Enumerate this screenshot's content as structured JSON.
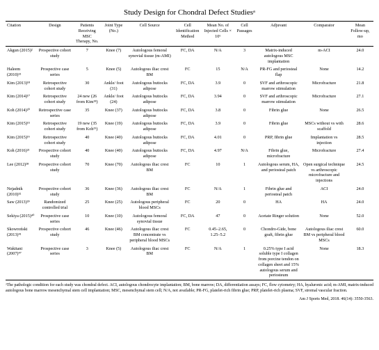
{
  "title": "Study Design for Chondral Defect Studiesᵃ",
  "columns": [
    "Citation",
    "Design",
    "Patients Receiving MSC Therapy, No.",
    "Joint Type (No.)",
    "Cell Source",
    "Cell Identification Method",
    "Mean No. of Injected Cells × 10⁶",
    "Cell Passages",
    "Adjuvant",
    "Comparator",
    "Mean Follow-up, mo"
  ],
  "rows": [
    [
      "Akgun (2015)²",
      "Prospective cohort study",
      "7",
      "Knee (7)",
      "Autologous femoral synovial tissue (m-AMI)",
      "FC, DA",
      "N/A",
      "3",
      "Matrix-induced autologous MSC implantation",
      "m-ACI",
      "24.0"
    ],
    [
      "Haleem (2010)¹³",
      "Prospective case series",
      "5",
      "Knee (5)",
      "Autologous iliac crest BM",
      "FC",
      "15",
      "N/A",
      "PR-FG and periosteal flap",
      "None",
      "14.2"
    ],
    [
      "Kim (2013)¹⁸",
      "Retrospective cohort study",
      "30",
      "Ankle/ foot (31)",
      "Autologous buttocks adipose",
      "FC, DA",
      "3.9",
      "0",
      "SVF and arthroscopic marrow stimulation",
      "Microfracture",
      "21.8"
    ],
    [
      "Kim (2014)¹⁷",
      "Retrospective cohort study",
      "24 new (26 from Kim¹⁸)",
      "Ankle/ foot (24)",
      "Autologous buttocks adipose",
      "FC, DA",
      "3.94",
      "0",
      "SVF and arthroscopic marrow stimulation",
      "Microfracture",
      "27.1"
    ],
    [
      "Koh (2014)²⁰",
      "Retrospective case series",
      "35",
      "Knee (37)",
      "Autologous buttocks adipose",
      "FC, DA",
      "3.8",
      "0",
      "Fibrin glue",
      "None",
      "26.5"
    ],
    [
      "Kim (2015)¹⁵",
      "Retrospective cohort study",
      "19 new (35 from Koh¹⁹)",
      "Knee (19)",
      "Autologous buttocks adipose",
      "FC, DA",
      "3.9",
      "0",
      "Fibrin glue",
      "MSCs without vs with scaffold",
      "28.6"
    ],
    [
      "Kim (2015)¹⁶",
      "Retrospective cohort study",
      "40",
      "Knee (40)",
      "Autologous buttocks adipose",
      "FC, DA",
      "4.01",
      "0",
      "PRP, fibrin glue",
      "Implantation vs injection",
      "28.5"
    ],
    [
      "Koh (2016)²¹",
      "Prospective cohort study",
      "40",
      "Knee (40)",
      "Autologous buttocks adipose",
      "FC, DA",
      "4.97",
      "N/A",
      "Fibrin glue, microfracture",
      "Microfracture",
      "27.4"
    ],
    [
      "Lee (2012)²⁸",
      "Prospective cohort study",
      "70",
      "Knee (70)",
      "Autologous iliac crest BM",
      "FC",
      "10",
      "1",
      "Autologous serum, HA, and periosteal patch",
      "Open surgical technique vs arthroscopic microfracture and injections",
      "24.5"
    ],
    [
      "Nejadnik (2010)³²",
      "Prospective cohort study",
      "36",
      "Knee (36)",
      "Autologous iliac crest BM",
      "FC",
      "N/A",
      "1",
      "Fibrin glue and periosteal patch",
      "ACI",
      "24.0"
    ],
    [
      "Saw (2013)³⁹",
      "Randomized controlled trial",
      "25",
      "Knee (25)",
      "Autologous peripheral blood MSCs",
      "FC",
      "20",
      "0",
      "HA",
      "HA",
      "24.0"
    ],
    [
      "Sekiya (2015)⁴⁰",
      "Prospective case series",
      "10",
      "Knee (10)",
      "Autologous femoral synovial tissue",
      "FC, DA",
      "47",
      "0",
      "Acetate Ringer solution",
      "None",
      "52.0"
    ],
    [
      "Skowroński (2013)⁴¹",
      "Prospective cohort study",
      "46",
      "Knee (46)",
      "Autologous iliac crest BM concentrate vs peripheral blood MSCs",
      "FC",
      "0.45–2.65, 1.25–5.2",
      "0",
      "Chondro-Gide, bone graft, fibrin glue",
      "Autologous iliac crest BM vs peripheral blood MSCs",
      "60.0"
    ],
    [
      "Wakitani (2007)⁴⁷",
      "Prospective case series",
      "3",
      "Knee (5)",
      "Autologous iliac crest BM",
      "FC",
      "N/A",
      "1",
      "0.25% type I acid soluble type I collagen from porcine tendon on collagen sheet and 15% autologous serum and periosteum",
      "None",
      "18.3"
    ]
  ],
  "footnote": "ᵃThe pathologic condition for each study was chondral defect. ACI, autologous chondrocyte implantation; BM, bone marrow; DA, differentiation assays; FC, flow cytometry; HA, hyaluronic acid; m-AMI, matrix-induced autologous bone marrow mesenchymal stem cell implantation; MSC, mesenchymal stem cell; N/A, not available; PR-FG, platelet-rich fibrin glue; PRP, platelet-rich plasma; SVF, stromal vascular fraction.",
  "sourceline": "Am J Sports Med, 2018. 46(14): 3550-3563."
}
